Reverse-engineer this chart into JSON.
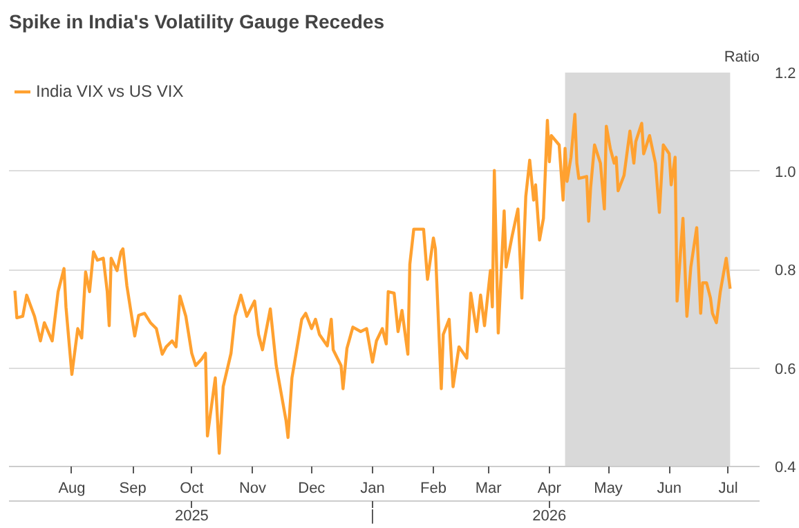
{
  "chart_data": {
    "type": "line",
    "title": "Spike in India's Volatility Gauge Recedes",
    "ylabel": "Ratio",
    "x": [
      "2025-07-03",
      "2025-07-04",
      "2025-07-07",
      "2025-07-09",
      "2025-07-13",
      "2025-07-16",
      "2025-07-18",
      "2025-07-22",
      "2025-07-25",
      "2025-07-28",
      "2025-07-29",
      "2025-08-01",
      "2025-08-04",
      "2025-08-06",
      "2025-08-08",
      "2025-08-10",
      "2025-08-12",
      "2025-08-14",
      "2025-08-17",
      "2025-08-19",
      "2025-08-20",
      "2025-08-21",
      "2025-08-24",
      "2025-08-26",
      "2025-08-27",
      "2025-08-29",
      "2025-09-02",
      "2025-09-04",
      "2025-09-07",
      "2025-09-10",
      "2025-09-13",
      "2025-09-16",
      "2025-09-18",
      "2025-09-21",
      "2025-09-23",
      "2025-09-25",
      "2025-09-28",
      "2025-10-01",
      "2025-10-03",
      "2025-10-06",
      "2025-10-08",
      "2025-10-09",
      "2025-10-13",
      "2025-10-15",
      "2025-10-17",
      "2025-10-21",
      "2025-10-23",
      "2025-10-26",
      "2025-10-29",
      "2025-11-02",
      "2025-11-04",
      "2025-11-06",
      "2025-11-10",
      "2025-11-13",
      "2025-11-18",
      "2025-11-19",
      "2025-11-21",
      "2025-11-26",
      "2025-11-28",
      "2025-12-01",
      "2025-12-03",
      "2025-12-05",
      "2025-12-09",
      "2025-12-11",
      "2025-12-12",
      "2025-12-16",
      "2025-12-17",
      "2025-12-19",
      "2025-12-22",
      "2025-12-26",
      "2025-12-29",
      "2026-01-01",
      "2026-01-03",
      "2026-01-06",
      "2026-01-08",
      "2026-01-09",
      "2026-01-12",
      "2026-01-14",
      "2026-01-16",
      "2026-01-19",
      "2026-01-20",
      "2026-01-22",
      "2026-01-27",
      "2026-01-29",
      "2026-02-01",
      "2026-02-02",
      "2026-02-05",
      "2026-02-06",
      "2026-02-09",
      "2026-02-11",
      "2026-02-14",
      "2026-02-18",
      "2026-02-20",
      "2026-02-23",
      "2026-02-25",
      "2026-02-27",
      "2026-03-02",
      "2026-03-03",
      "2026-03-04",
      "2026-03-06",
      "2026-03-09",
      "2026-03-10",
      "2026-03-13",
      "2026-03-16",
      "2026-03-18",
      "2026-03-20",
      "2026-03-22",
      "2026-03-24",
      "2026-03-25",
      "2026-03-27",
      "2026-03-29",
      "2026-03-31",
      "2026-04-01",
      "2026-04-02",
      "2026-04-06",
      "2026-04-08",
      "2026-04-09",
      "2026-04-10",
      "2026-04-12",
      "2026-04-14",
      "2026-04-15",
      "2026-04-16",
      "2026-04-20",
      "2026-04-21",
      "2026-04-22",
      "2026-04-24",
      "2026-04-27",
      "2026-04-29",
      "2026-04-30",
      "2026-05-02",
      "2026-05-04",
      "2026-05-05",
      "2026-05-06",
      "2026-05-09",
      "2026-05-12",
      "2026-05-14",
      "2026-05-15",
      "2026-05-18",
      "2026-05-19",
      "2026-05-22",
      "2026-05-25",
      "2026-05-27",
      "2026-05-29",
      "2026-06-01",
      "2026-06-02",
      "2026-06-04",
      "2026-06-05",
      "2026-06-08",
      "2026-06-10",
      "2026-06-12",
      "2026-06-15",
      "2026-06-17",
      "2026-06-18",
      "2026-06-20",
      "2026-06-22",
      "2026-06-23",
      "2026-06-25",
      "2026-06-27",
      "2026-06-30",
      "2026-07-02"
    ],
    "series": [
      {
        "name": "India VIX vs US VIX",
        "color": "#ffa130",
        "values": [
          0.757,
          0.702,
          0.705,
          0.748,
          0.705,
          0.655,
          0.692,
          0.655,
          0.755,
          0.802,
          0.724,
          0.587,
          0.68,
          0.661,
          0.795,
          0.755,
          0.836,
          0.819,
          0.823,
          0.755,
          0.686,
          0.823,
          0.798,
          0.836,
          0.842,
          0.767,
          0.665,
          0.707,
          0.711,
          0.692,
          0.68,
          0.628,
          0.643,
          0.655,
          0.643,
          0.746,
          0.705,
          0.63,
          0.605,
          0.618,
          0.63,
          0.462,
          0.58,
          0.427,
          0.562,
          0.63,
          0.705,
          0.748,
          0.705,
          0.736,
          0.668,
          0.637,
          0.72,
          0.605,
          0.493,
          0.459,
          0.58,
          0.699,
          0.711,
          0.68,
          0.699,
          0.668,
          0.645,
          0.699,
          0.637,
          0.605,
          0.558,
          0.64,
          0.683,
          0.674,
          0.68,
          0.612,
          0.655,
          0.68,
          0.649,
          0.755,
          0.752,
          0.674,
          0.717,
          0.628,
          0.811,
          0.882,
          0.882,
          0.78,
          0.864,
          0.842,
          0.558,
          0.668,
          0.699,
          0.562,
          0.643,
          0.62,
          0.752,
          0.674,
          0.748,
          0.686,
          0.798,
          0.724,
          1.001,
          0.671,
          0.919,
          0.805,
          0.867,
          0.923,
          0.742,
          0.948,
          1.022,
          0.941,
          0.972,
          0.86,
          0.904,
          1.103,
          1.019,
          1.072,
          1.053,
          0.941,
          1.046,
          0.979,
          1.028,
          1.115,
          1.016,
          0.985,
          0.989,
          0.898,
          0.966,
          1.053,
          1.016,
          0.923,
          1.091,
          1.046,
          1.016,
          1.028,
          0.96,
          0.991,
          1.081,
          1.016,
          1.06,
          1.097,
          1.035,
          1.072,
          1.016,
          0.916,
          1.053,
          1.035,
          0.972,
          1.028,
          0.736,
          0.904,
          0.705,
          0.805,
          0.885,
          0.711,
          0.773,
          0.773,
          0.742,
          0.711,
          0.692,
          0.755,
          0.823,
          0.761
        ]
      }
    ],
    "xlim": [
      "2025-06-30",
      "2026-07-17"
    ],
    "xticks": [
      {
        "value": "2025-08-01",
        "label": "Aug"
      },
      {
        "value": "2025-09-01",
        "label": "Sep"
      },
      {
        "value": "2025-10-01",
        "label": "Oct"
      },
      {
        "value": "2025-11-01",
        "label": "Nov"
      },
      {
        "value": "2025-12-01",
        "label": "Dec"
      },
      {
        "value": "2026-01-01",
        "label": "Jan"
      },
      {
        "value": "2026-02-01",
        "label": "Feb"
      },
      {
        "value": "2026-03-01",
        "label": "Mar"
      },
      {
        "value": "2026-04-01",
        "label": "Apr"
      },
      {
        "value": "2026-05-01",
        "label": "May"
      },
      {
        "value": "2026-06-01",
        "label": "Jun"
      },
      {
        "value": "2026-07-01",
        "label": "Jul"
      }
    ],
    "annotations": [
      "2025",
      "|",
      "2026"
    ],
    "ylim": [
      0.4,
      1.2
    ],
    "yticks": [
      0.4,
      0.6,
      0.8,
      {
        "value": 1.0,
        "label": "1.0"
      },
      1.2
    ],
    "bands": [
      {
        "axis": "x",
        "from": "2026-04-09",
        "to": "2026-07-02",
        "color": "#d9d9d9"
      }
    ],
    "grid": "y",
    "legend": "top left",
    "line_style": "solid",
    "marker": "none"
  }
}
